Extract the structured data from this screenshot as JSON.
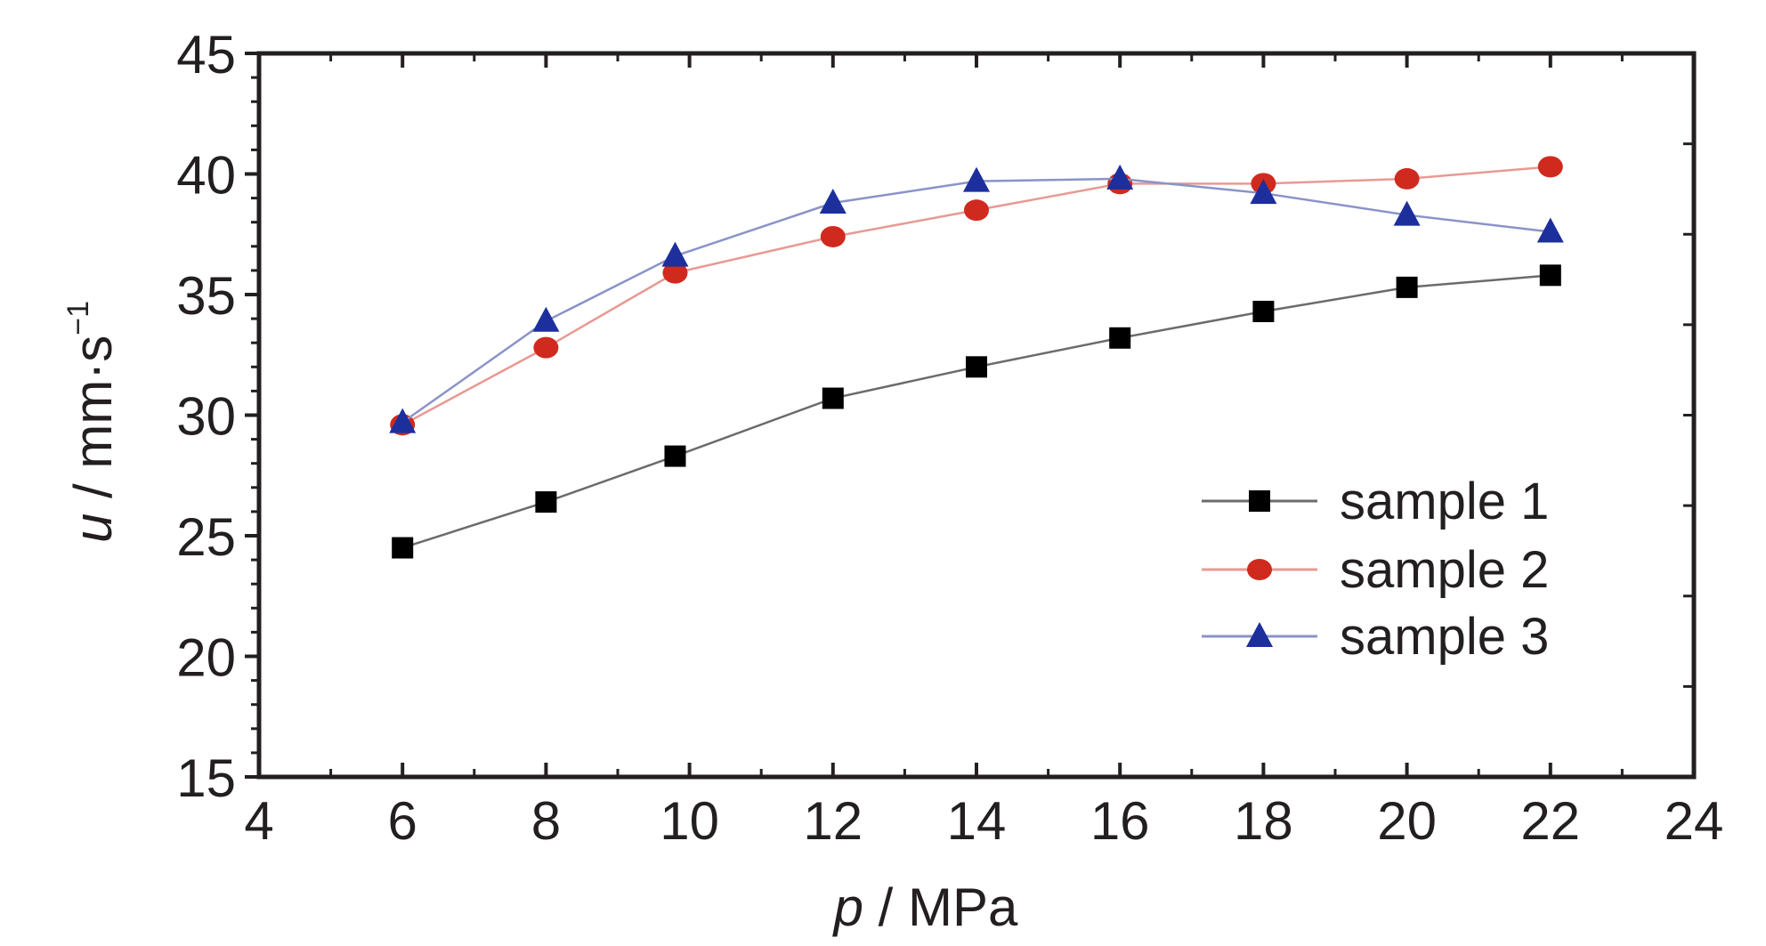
{
  "chart_data": {
    "type": "line",
    "title": "",
    "xlabel": {
      "var": "p",
      "unit": " / MPa"
    },
    "ylabel": {
      "var": "u",
      "unit": " / mm·s",
      "exp": "−1"
    },
    "xlim": [
      4,
      24
    ],
    "ylim": [
      15,
      45
    ],
    "xticks": [
      "4",
      "6",
      "8",
      "10",
      "12",
      "14",
      "16",
      "18",
      "20",
      "22",
      "24"
    ],
    "yticks": [
      "15",
      "20",
      "25",
      "30",
      "35",
      "40",
      "45"
    ],
    "grid": false,
    "legend_position": "lower-right",
    "series": [
      {
        "name": "sample 1",
        "marker": "square",
        "color": "#000000",
        "line_color": "#6b6b6b",
        "x": [
          6,
          8,
          9.8,
          12,
          14,
          16,
          18,
          20,
          22
        ],
        "y": [
          24.5,
          26.4,
          28.3,
          30.7,
          32.0,
          33.2,
          34.3,
          35.3,
          35.8
        ]
      },
      {
        "name": "sample 2",
        "marker": "circle",
        "color": "#d02a1e",
        "line_color": "#e89a94",
        "x": [
          6,
          8,
          9.8,
          12,
          14,
          16,
          18,
          20,
          22
        ],
        "y": [
          29.6,
          32.8,
          35.9,
          37.4,
          38.5,
          39.6,
          39.6,
          39.8,
          40.3
        ]
      },
      {
        "name": "sample 3",
        "marker": "triangle",
        "color": "#1c2f9c",
        "line_color": "#8a93c8",
        "x": [
          6,
          8,
          9.8,
          12,
          14,
          16,
          18,
          20,
          22
        ],
        "y": [
          29.7,
          33.9,
          36.6,
          38.8,
          39.7,
          39.8,
          39.2,
          38.3,
          37.6
        ]
      }
    ]
  }
}
